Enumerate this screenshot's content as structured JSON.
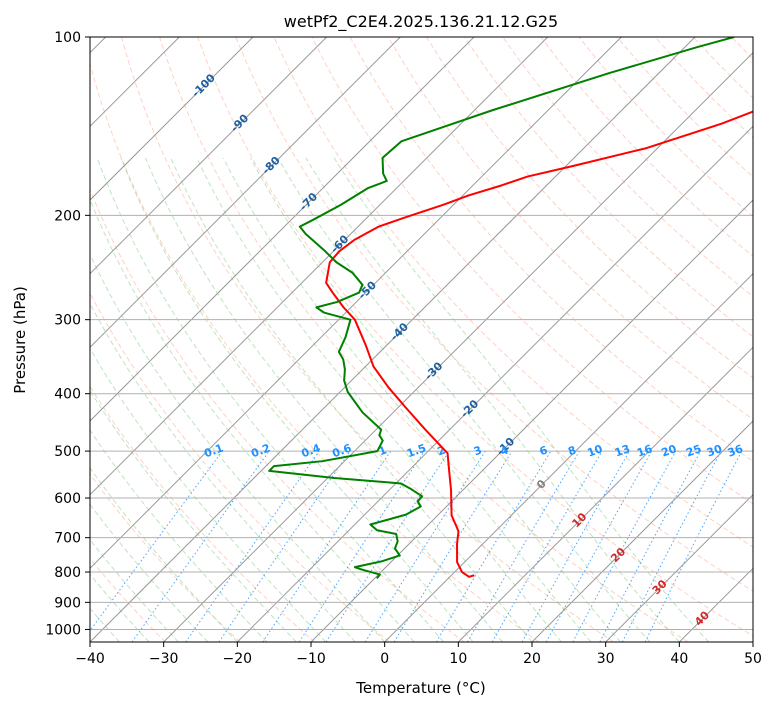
{
  "chart_data": {
    "type": "line",
    "title": "wetPf2_C2E4.2025.136.21.12.G25",
    "xlabel": "Temperature (°C)",
    "ylabel": "Pressure (hPa)",
    "xlim": [
      -40,
      50
    ],
    "ylim": [
      1050,
      100
    ],
    "y_scale": "log",
    "grid": true,
    "x_ticks": [
      -40,
      -30,
      -20,
      -10,
      0,
      10,
      20,
      30,
      40,
      50
    ],
    "x_tick_labels": [
      "−40",
      "−30",
      "−20",
      "−10",
      "0",
      "10",
      "20",
      "30",
      "40",
      "50"
    ],
    "y_ticks": [
      100,
      200,
      300,
      400,
      500,
      600,
      700,
      800,
      900,
      1000
    ],
    "y_tick_labels": [
      "100",
      "200",
      "300",
      "400",
      "500",
      "600",
      "700",
      "800",
      "900",
      "1000"
    ],
    "background_lines": {
      "dry_adiabats": "dashed light-red",
      "moist_adiabats": "dashed light-green",
      "mixing_ratio": "dotted blue",
      "isotherms": "solid gray, skewed"
    },
    "isotherm_labels": {
      "color": "#1f5fa0",
      "labels": [
        {
          "t": -100,
          "p": 121,
          "text": "-100"
        },
        {
          "t": -90,
          "p": 140,
          "text": "-90"
        },
        {
          "t": -80,
          "p": 165,
          "text": "-80"
        },
        {
          "t": -70,
          "p": 190,
          "text": "-70"
        },
        {
          "t": -60,
          "p": 224,
          "text": "-60"
        },
        {
          "t": -50,
          "p": 268,
          "text": "-50"
        },
        {
          "t": -40,
          "p": 315,
          "text": "-40"
        },
        {
          "t": -30,
          "p": 367,
          "text": "-30"
        },
        {
          "t": -20,
          "p": 425,
          "text": "-20"
        },
        {
          "t": -10,
          "p": 492,
          "text": "-10"
        },
        {
          "t": 0,
          "p": 570,
          "text": "0"
        },
        {
          "t": 10,
          "p": 655,
          "text": "10"
        },
        {
          "t": 20,
          "p": 750,
          "text": "20"
        },
        {
          "t": 30,
          "p": 850,
          "text": "30"
        },
        {
          "t": 40,
          "p": 960,
          "text": "40"
        }
      ]
    },
    "mixing_ratio_labels": {
      "color": "#1e90ff",
      "pressure": 520,
      "labels": [
        {
          "w": 0.1,
          "text": "0.1"
        },
        {
          "w": 0.2,
          "text": "0.2"
        },
        {
          "w": 0.4,
          "text": "0.4"
        },
        {
          "w": 0.6,
          "text": "0.6"
        },
        {
          "w": 1,
          "text": "1"
        },
        {
          "w": 1.5,
          "text": "1.5"
        },
        {
          "w": 2,
          "text": "2"
        },
        {
          "w": 3,
          "text": "3"
        },
        {
          "w": 4,
          "text": "4"
        },
        {
          "w": 6,
          "text": "6"
        },
        {
          "w": 8,
          "text": "8"
        },
        {
          "w": 10,
          "text": "10"
        },
        {
          "w": 13,
          "text": "13"
        },
        {
          "w": 16,
          "text": "16"
        },
        {
          "w": 20,
          "text": "20"
        },
        {
          "w": 25,
          "text": "25"
        },
        {
          "w": 30,
          "text": "30"
        },
        {
          "w": 36,
          "text": "36"
        }
      ]
    },
    "series": [
      {
        "label": "temperature",
        "color": "#ff0000",
        "points": [
          [
            -9.3,
            100
          ],
          [
            -10.5,
            103
          ],
          [
            -13.9,
            110
          ],
          [
            -16.2,
            117
          ],
          [
            -18.0,
            123
          ],
          [
            -20.5,
            130
          ],
          [
            -24.6,
            140
          ],
          [
            -31.5,
            154
          ],
          [
            -39.0,
            165
          ],
          [
            -43.8,
            172
          ],
          [
            -46.1,
            178
          ],
          [
            -49.2,
            185
          ],
          [
            -51.4,
            192
          ],
          [
            -55.0,
            202
          ],
          [
            -57.2,
            209
          ],
          [
            -58.7,
            220
          ],
          [
            -59.2,
            230
          ],
          [
            -59.0,
            240
          ],
          [
            -56.7,
            260
          ],
          [
            -54.5,
            270
          ],
          [
            -51.0,
            286
          ],
          [
            -47.8,
            300
          ],
          [
            -42.9,
            331
          ],
          [
            -38.9,
            360
          ],
          [
            -34.1,
            390
          ],
          [
            -29.3,
            420
          ],
          [
            -23.3,
            460
          ],
          [
            -17.1,
            504
          ],
          [
            -14.4,
            541
          ],
          [
            -11.6,
            582
          ],
          [
            -8.1,
            642
          ],
          [
            -6.1,
            668
          ],
          [
            -5.0,
            683
          ],
          [
            -3.5,
            717
          ],
          [
            -1.0,
            770
          ],
          [
            1.0,
            800
          ],
          [
            2.6,
            815
          ],
          [
            3.1,
            810
          ]
        ]
      },
      {
        "label": "dewpoint",
        "color": "#008000",
        "points": [
          [
            -34.7,
            100
          ],
          [
            -38.3,
            104
          ],
          [
            -46.7,
            115
          ],
          [
            -57.6,
            133
          ],
          [
            -65.7,
            150
          ],
          [
            -66.0,
            160
          ],
          [
            -63.8,
            170
          ],
          [
            -62.3,
            175
          ],
          [
            -63.9,
            180
          ],
          [
            -65.3,
            192
          ],
          [
            -67.1,
            204
          ],
          [
            -67.9,
            209
          ],
          [
            -66.1,
            215
          ],
          [
            -61.1,
            230
          ],
          [
            -58.1,
            240
          ],
          [
            -54.5,
            250
          ],
          [
            -51.5,
            262
          ],
          [
            -50.9,
            270
          ],
          [
            -52.6,
            280
          ],
          [
            -54.7,
            286
          ],
          [
            -52.9,
            292
          ],
          [
            -48.4,
            300
          ],
          [
            -46.7,
            321
          ],
          [
            -45.6,
            340
          ],
          [
            -44.0,
            350
          ],
          [
            -42.4,
            364
          ],
          [
            -41.0,
            380
          ],
          [
            -39.0,
            397
          ],
          [
            -34.2,
            430
          ],
          [
            -29.3,
            460
          ],
          [
            -28.8,
            470
          ],
          [
            -27.6,
            480
          ],
          [
            -26.9,
            500
          ],
          [
            -33.0,
            520
          ],
          [
            -38.9,
            530
          ],
          [
            -38.9,
            540
          ],
          [
            -29.1,
            555
          ],
          [
            -19.3,
            567
          ],
          [
            -17.1,
            580
          ],
          [
            -14.7,
            596
          ],
          [
            -14.6,
            608
          ],
          [
            -13.5,
            620
          ],
          [
            -14.4,
            640
          ],
          [
            -17.9,
            665
          ],
          [
            -16.2,
            680
          ],
          [
            -13.1,
            690
          ],
          [
            -11.9,
            710
          ],
          [
            -11.3,
            730
          ],
          [
            -9.7,
            750
          ],
          [
            -11.3,
            767
          ],
          [
            -14.2,
            785
          ],
          [
            -13.0,
            792
          ],
          [
            -9.8,
            808
          ],
          [
            -9.7,
            820
          ]
        ]
      }
    ]
  }
}
